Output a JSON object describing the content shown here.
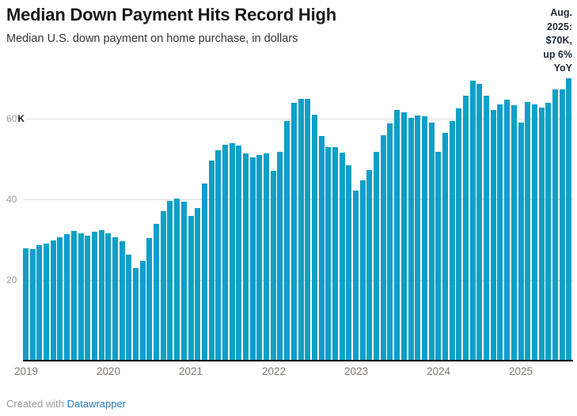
{
  "header": {
    "title": "Median Down Payment Hits Record High",
    "subtitle": "Median U.S. down payment on home purchase, in dollars"
  },
  "annotation": {
    "lines": [
      "Aug.",
      "2025:",
      "$70K,",
      "up 6%",
      "YoY"
    ]
  },
  "chart_data": {
    "type": "bar",
    "title": "Median Down Payment Hits Record High",
    "subtitle": "Median U.S. down payment on home purchase, in dollars",
    "unit": "USD thousands",
    "bar_color": "#0f9fc8",
    "grid": true,
    "ylim": [
      0,
      89
    ],
    "yticks": [
      20,
      40,
      60
    ],
    "y_axis": {
      "t60": "60",
      "t60_unit": "K",
      "t40": "40",
      "t20": "20"
    },
    "year_labels": [
      "2019",
      "2020",
      "2021",
      "2022",
      "2023",
      "2024",
      "2025"
    ],
    "x": [
      "2019-01",
      "2019-02",
      "2019-03",
      "2019-04",
      "2019-05",
      "2019-06",
      "2019-07",
      "2019-08",
      "2019-09",
      "2019-10",
      "2019-11",
      "2019-12",
      "2020-01",
      "2020-02",
      "2020-03",
      "2020-04",
      "2020-05",
      "2020-06",
      "2020-07",
      "2020-08",
      "2020-09",
      "2020-10",
      "2020-11",
      "2020-12",
      "2021-01",
      "2021-02",
      "2021-03",
      "2021-04",
      "2021-05",
      "2021-06",
      "2021-07",
      "2021-08",
      "2021-09",
      "2021-10",
      "2021-11",
      "2021-12",
      "2022-01",
      "2022-02",
      "2022-03",
      "2022-04",
      "2022-05",
      "2022-06",
      "2022-07",
      "2022-08",
      "2022-09",
      "2022-10",
      "2022-11",
      "2022-12",
      "2023-01",
      "2023-02",
      "2023-03",
      "2023-04",
      "2023-05",
      "2023-06",
      "2023-07",
      "2023-08",
      "2023-09",
      "2023-10",
      "2023-11",
      "2023-12",
      "2024-01",
      "2024-02",
      "2024-03",
      "2024-04",
      "2024-05",
      "2024-06",
      "2024-07",
      "2024-08",
      "2024-09",
      "2024-10",
      "2024-11",
      "2024-12",
      "2025-01",
      "2025-02",
      "2025-03",
      "2025-04",
      "2025-05",
      "2025-06",
      "2025-07",
      "2025-08"
    ],
    "values": [
      27.9,
      27.6,
      28.7,
      29.0,
      29.9,
      30.6,
      31.3,
      32.1,
      31.5,
      31.0,
      32.0,
      32.3,
      31.6,
      30.5,
      29.7,
      26.3,
      23.0,
      24.8,
      30.3,
      34.0,
      37.1,
      39.7,
      40.2,
      39.5,
      35.9,
      37.9,
      44.0,
      49.7,
      52.2,
      53.6,
      53.9,
      53.3,
      51.3,
      50.3,
      50.9,
      51.4,
      47.0,
      51.8,
      59.4,
      63.9,
      64.9,
      64.9,
      61.0,
      55.7,
      52.9,
      52.9,
      51.6,
      48.4,
      42.2,
      44.8,
      47.3,
      51.7,
      55.9,
      58.9,
      62.2,
      61.5,
      60.2,
      60.8,
      60.6,
      59.0,
      51.8,
      56.4,
      59.4,
      62.6,
      65.7,
      69.5,
      68.6,
      65.7,
      62.1,
      63.6,
      64.7,
      63.4,
      59.0,
      64.2,
      63.6,
      62.8,
      63.9,
      67.2,
      67.2,
      70.0
    ],
    "annotation": "Aug. 2025: $70K, up 6% YoY"
  },
  "footer": {
    "prefix": "Created with",
    "link": "Datawrapper"
  }
}
